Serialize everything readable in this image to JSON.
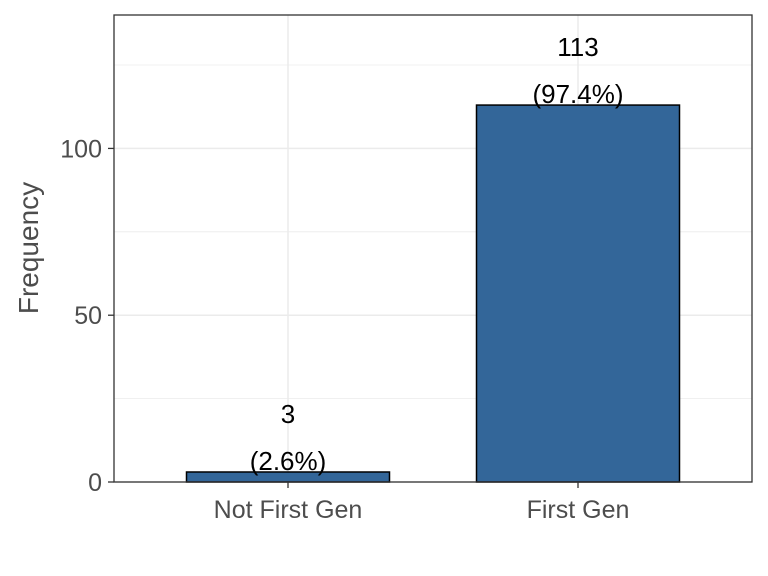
{
  "chart_data": {
    "type": "bar",
    "categories": [
      "Not First Gen",
      "First Gen"
    ],
    "values": [
      3,
      113
    ],
    "labels": [
      {
        "count": "3",
        "percent": "(2.6%)"
      },
      {
        "count": "113",
        "percent": "(97.4%)"
      }
    ],
    "title": "",
    "xlabel": "",
    "ylabel": "Frequency",
    "ylim": [
      0,
      140
    ],
    "yticks": [
      0,
      50,
      100
    ],
    "ytick_labels": [
      "0",
      "50",
      "100"
    ],
    "grid": true,
    "bar_color": "#336699",
    "bar_edge_color": "#000000",
    "grid_color": "#ebebeb",
    "panel_border_color": "#333333"
  }
}
